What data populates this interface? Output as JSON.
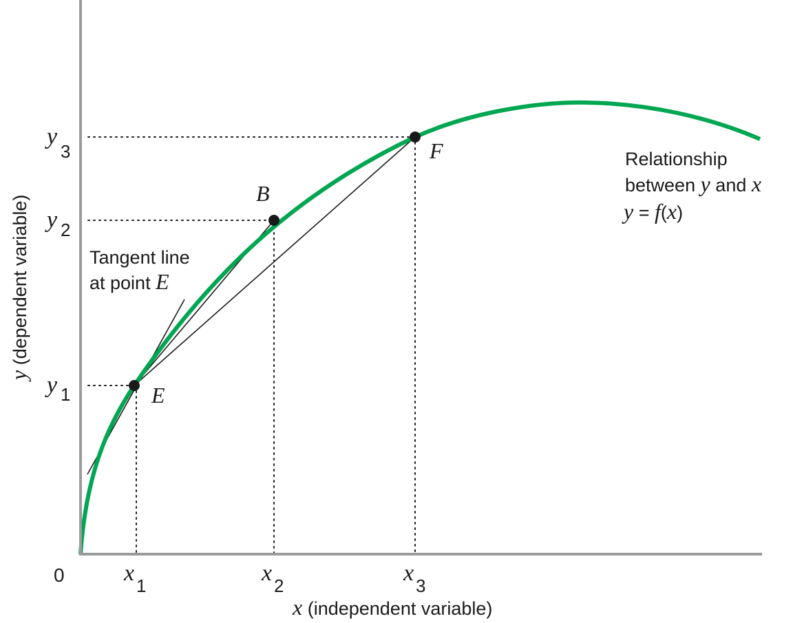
{
  "origin_label": "0",
  "x_axis_title": {
    "var": "x",
    "text": " (independent variable)"
  },
  "y_axis_title": {
    "var": "y",
    "text": " (dependent variable)"
  },
  "x_ticks": [
    {
      "var": "x",
      "sub": "1"
    },
    {
      "var": "x",
      "sub": "2"
    },
    {
      "var": "x",
      "sub": "3"
    }
  ],
  "y_ticks": [
    {
      "var": "y",
      "sub": "1"
    },
    {
      "var": "y",
      "sub": "2"
    },
    {
      "var": "y",
      "sub": "3"
    }
  ],
  "points": [
    {
      "label": "E"
    },
    {
      "label": "B"
    },
    {
      "label": "F"
    }
  ],
  "tangent_note": {
    "line1": "Tangent line",
    "line2_prefix": "at point ",
    "line2_var": "E"
  },
  "curve_note": {
    "line1": "Relationship",
    "line2_prefix": "between ",
    "line2_y": "y",
    "line2_and": " and ",
    "line2_x": "x",
    "line3_y": "y",
    "line3_eq": " = ",
    "line3_f": "f",
    "line3_open": "(",
    "line3_x": "x",
    "line3_close": ")"
  },
  "colors": {
    "curve": "#00a651",
    "axis": "#9b9b9b",
    "ink": "#1a1a1a"
  }
}
